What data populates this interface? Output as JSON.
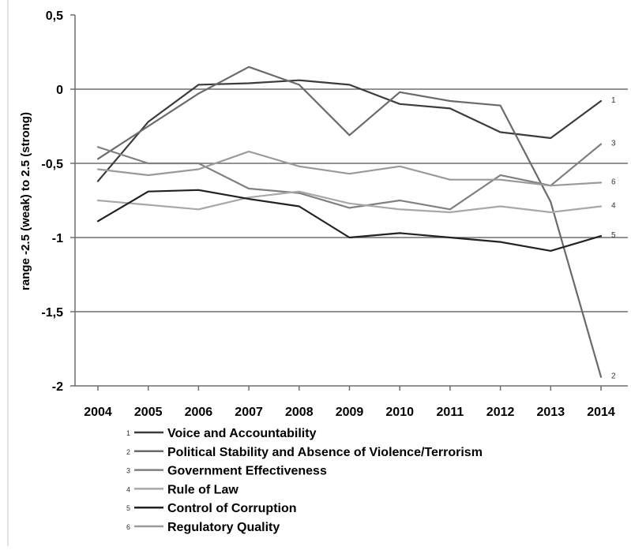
{
  "chart_data": {
    "type": "line",
    "ylabel": "range -2.5 (weak) to 2.5 (strong)",
    "xlabel": "",
    "ylim": [
      -2,
      0.5
    ],
    "y_ticks": [
      {
        "value": 0.5,
        "label": "0,5"
      },
      {
        "value": 0,
        "label": "0"
      },
      {
        "value": -0.5,
        "label": "-0,5"
      },
      {
        "value": -1,
        "label": "-1"
      },
      {
        "value": -1.5,
        "label": "-1,5"
      },
      {
        "value": -2,
        "label": "-2"
      }
    ],
    "grid": "horizontal",
    "legend_position": "bottom",
    "categories": [
      "2004",
      "2005",
      "2006",
      "2007",
      "2008",
      "2009",
      "2010",
      "2011",
      "2012",
      "2013",
      "2014"
    ],
    "series": [
      {
        "id": "1",
        "name": "Voice and Accountability",
        "color": "#3c3c3c",
        "values": [
          -0.62,
          -0.22,
          0.03,
          0.04,
          0.06,
          0.03,
          -0.1,
          -0.13,
          -0.29,
          -0.33,
          -0.08
        ]
      },
      {
        "id": "2",
        "name": "Political Stability and Absence of Violence/Terrorism",
        "color": "#6a6a6a",
        "values": [
          -0.47,
          -0.25,
          -0.03,
          0.15,
          0.03,
          -0.31,
          -0.02,
          -0.08,
          -0.11,
          -0.76,
          -1.94
        ]
      },
      {
        "id": "3",
        "name": "Government Effectiveness",
        "color": "#808080",
        "values": [
          -0.39,
          -0.5,
          -0.5,
          -0.67,
          -0.7,
          -0.8,
          -0.75,
          -0.81,
          -0.58,
          -0.65,
          -0.37
        ]
      },
      {
        "id": "4",
        "name": "Rule of Law",
        "color": "#a8a8a8",
        "values": [
          -0.75,
          -0.78,
          -0.81,
          -0.73,
          -0.69,
          -0.77,
          -0.81,
          -0.83,
          -0.79,
          -0.83,
          -0.79
        ]
      },
      {
        "id": "5",
        "name": "Control of Corruption",
        "color": "#222222",
        "values": [
          -0.89,
          -0.69,
          -0.68,
          -0.74,
          -0.79,
          -1.0,
          -0.97,
          -1.0,
          -1.03,
          -1.09,
          -0.99
        ]
      },
      {
        "id": "6",
        "name": "Regulatory Quality",
        "color": "#9a9a9a",
        "values": [
          -0.54,
          -0.58,
          -0.54,
          -0.42,
          -0.52,
          -0.57,
          -0.52,
          -0.61,
          -0.61,
          -0.65,
          -0.63
        ]
      }
    ]
  }
}
